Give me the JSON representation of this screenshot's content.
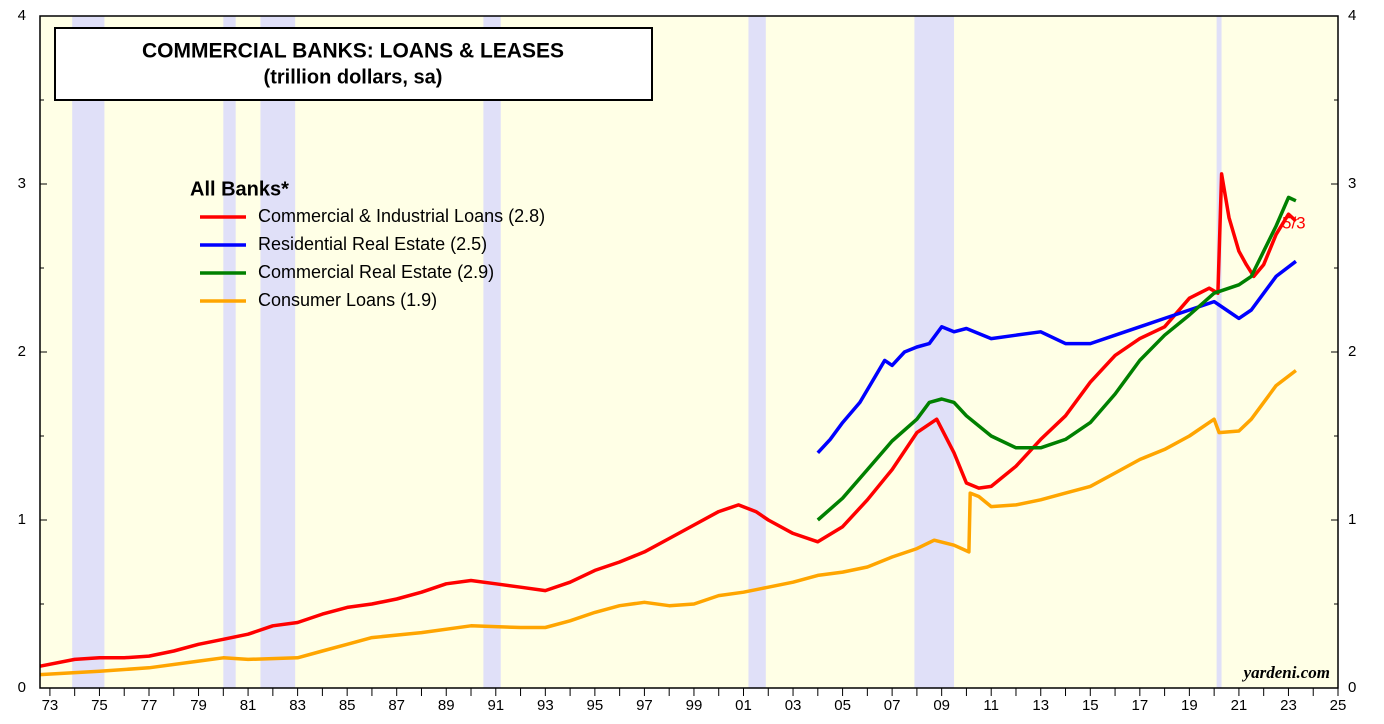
{
  "chart_data": {
    "type": "line",
    "title": "COMMERCIAL BANKS: LOANS & LEASES",
    "subtitle": "(trillion dollars, sa)",
    "legend_title": "All Banks*",
    "annotation": "5/3",
    "source": "yardeni.com",
    "xlim": [
      1972.6,
      2025
    ],
    "ylim": [
      0,
      4
    ],
    "yticks": [
      0,
      1,
      2,
      3,
      4
    ],
    "xticks": [
      {
        "value": 1973,
        "label": "73"
      },
      {
        "value": 1975,
        "label": "75"
      },
      {
        "value": 1977,
        "label": "77"
      },
      {
        "value": 1979,
        "label": "79"
      },
      {
        "value": 1981,
        "label": "81"
      },
      {
        "value": 1983,
        "label": "83"
      },
      {
        "value": 1985,
        "label": "85"
      },
      {
        "value": 1987,
        "label": "87"
      },
      {
        "value": 1989,
        "label": "89"
      },
      {
        "value": 1991,
        "label": "91"
      },
      {
        "value": 1993,
        "label": "93"
      },
      {
        "value": 1995,
        "label": "95"
      },
      {
        "value": 1997,
        "label": "97"
      },
      {
        "value": 1999,
        "label": "99"
      },
      {
        "value": 2001,
        "label": "01"
      },
      {
        "value": 2003,
        "label": "03"
      },
      {
        "value": 2005,
        "label": "05"
      },
      {
        "value": 2007,
        "label": "07"
      },
      {
        "value": 2009,
        "label": "09"
      },
      {
        "value": 2011,
        "label": "11"
      },
      {
        "value": 2013,
        "label": "13"
      },
      {
        "value": 2015,
        "label": "15"
      },
      {
        "value": 2017,
        "label": "17"
      },
      {
        "value": 2019,
        "label": "19"
      },
      {
        "value": 2021,
        "label": "21"
      },
      {
        "value": 2023,
        "label": "23"
      },
      {
        "value": 2025,
        "label": "25"
      }
    ],
    "recessions": [
      [
        1973.9,
        1975.2
      ],
      [
        1980.0,
        1980.5
      ],
      [
        1981.5,
        1982.9
      ],
      [
        1990.5,
        1991.2
      ],
      [
        2001.2,
        2001.9
      ],
      [
        2007.9,
        2009.5
      ],
      [
        2020.1,
        2020.3
      ]
    ],
    "series": [
      {
        "name": "Commercial & Industrial Loans (2.8)",
        "color": "#ff0000",
        "x": [
          1972.6,
          1974,
          1975,
          1976,
          1977,
          1978,
          1979,
          1980,
          1981,
          1982,
          1983,
          1984,
          1985,
          1986,
          1987,
          1988,
          1989,
          1990,
          1991,
          1992,
          1993,
          1994,
          1995,
          1996,
          1997,
          1998,
          1999,
          2000,
          2000.8,
          2001.5,
          2002,
          2003,
          2004,
          2005,
          2006,
          2007,
          2008,
          2008.8,
          2009.5,
          2010,
          2010.5,
          2011,
          2012,
          2013,
          2014,
          2015,
          2016,
          2017,
          2018,
          2019,
          2019.8,
          2020.15,
          2020.3,
          2020.6,
          2021,
          2021.3,
          2021.6,
          2022,
          2022.5,
          2023,
          2023.3
        ],
        "values": [
          0.13,
          0.17,
          0.18,
          0.18,
          0.19,
          0.22,
          0.26,
          0.29,
          0.32,
          0.37,
          0.39,
          0.44,
          0.48,
          0.5,
          0.53,
          0.57,
          0.62,
          0.64,
          0.62,
          0.6,
          0.58,
          0.63,
          0.7,
          0.75,
          0.81,
          0.89,
          0.97,
          1.05,
          1.09,
          1.05,
          1.0,
          0.92,
          0.87,
          0.96,
          1.12,
          1.3,
          1.52,
          1.6,
          1.4,
          1.22,
          1.19,
          1.2,
          1.32,
          1.48,
          1.62,
          1.82,
          1.98,
          2.08,
          2.15,
          2.32,
          2.38,
          2.35,
          3.06,
          2.8,
          2.6,
          2.52,
          2.45,
          2.52,
          2.7,
          2.82,
          2.78
        ]
      },
      {
        "name": "Residential Real Estate (2.5)",
        "color": "#0000ff",
        "x": [
          2004,
          2004.5,
          2005,
          2005.7,
          2006.3,
          2006.7,
          2007,
          2007.5,
          2008,
          2008.5,
          2009,
          2009.5,
          2010,
          2011,
          2012,
          2013,
          2014,
          2015,
          2016,
          2017,
          2018,
          2019,
          2020,
          2020.5,
          2021,
          2021.5,
          2022,
          2022.5,
          2023.3
        ],
        "values": [
          1.4,
          1.48,
          1.58,
          1.7,
          1.85,
          1.95,
          1.92,
          2.0,
          2.03,
          2.05,
          2.15,
          2.12,
          2.14,
          2.08,
          2.1,
          2.12,
          2.05,
          2.05,
          2.1,
          2.15,
          2.2,
          2.25,
          2.3,
          2.25,
          2.2,
          2.25,
          2.35,
          2.45,
          2.54
        ]
      },
      {
        "name": "Commercial Real Estate (2.9)",
        "color": "#008000",
        "x": [
          2004,
          2005,
          2006,
          2007,
          2008,
          2008.5,
          2009,
          2009.5,
          2010,
          2011,
          2012,
          2013,
          2014,
          2015,
          2016,
          2017,
          2018,
          2019,
          2020,
          2021,
          2021.5,
          2022,
          2022.5,
          2023,
          2023.3
        ],
        "values": [
          1.0,
          1.13,
          1.3,
          1.47,
          1.6,
          1.7,
          1.72,
          1.7,
          1.62,
          1.5,
          1.43,
          1.43,
          1.48,
          1.58,
          1.75,
          1.95,
          2.1,
          2.22,
          2.35,
          2.4,
          2.45,
          2.6,
          2.75,
          2.92,
          2.9
        ]
      },
      {
        "name": "Consumer Loans (1.9)",
        "color": "#ffa500",
        "x": [
          1972.6,
          1975,
          1977,
          1979,
          1980,
          1981,
          1983,
          1984,
          1985,
          1986,
          1988,
          1990,
          1992,
          1993,
          1994,
          1995,
          1996,
          1997,
          1998,
          1999,
          2000,
          2001,
          2002,
          2003,
          2004,
          2005,
          2006,
          2007,
          2008,
          2008.7,
          2009.5,
          2010.1,
          2010.15,
          2010.5,
          2011,
          2012,
          2013,
          2014,
          2015,
          2016,
          2017,
          2018,
          2019,
          2020,
          2020.2,
          2021,
          2021.5,
          2022,
          2022.5,
          2023.3
        ],
        "values": [
          0.08,
          0.1,
          0.12,
          0.16,
          0.18,
          0.17,
          0.18,
          0.22,
          0.26,
          0.3,
          0.33,
          0.37,
          0.36,
          0.36,
          0.4,
          0.45,
          0.49,
          0.51,
          0.49,
          0.5,
          0.55,
          0.57,
          0.6,
          0.63,
          0.67,
          0.69,
          0.72,
          0.78,
          0.83,
          0.88,
          0.85,
          0.81,
          1.16,
          1.14,
          1.08,
          1.09,
          1.12,
          1.16,
          1.2,
          1.28,
          1.36,
          1.42,
          1.5,
          1.6,
          1.52,
          1.53,
          1.6,
          1.7,
          1.8,
          1.89
        ]
      }
    ]
  }
}
